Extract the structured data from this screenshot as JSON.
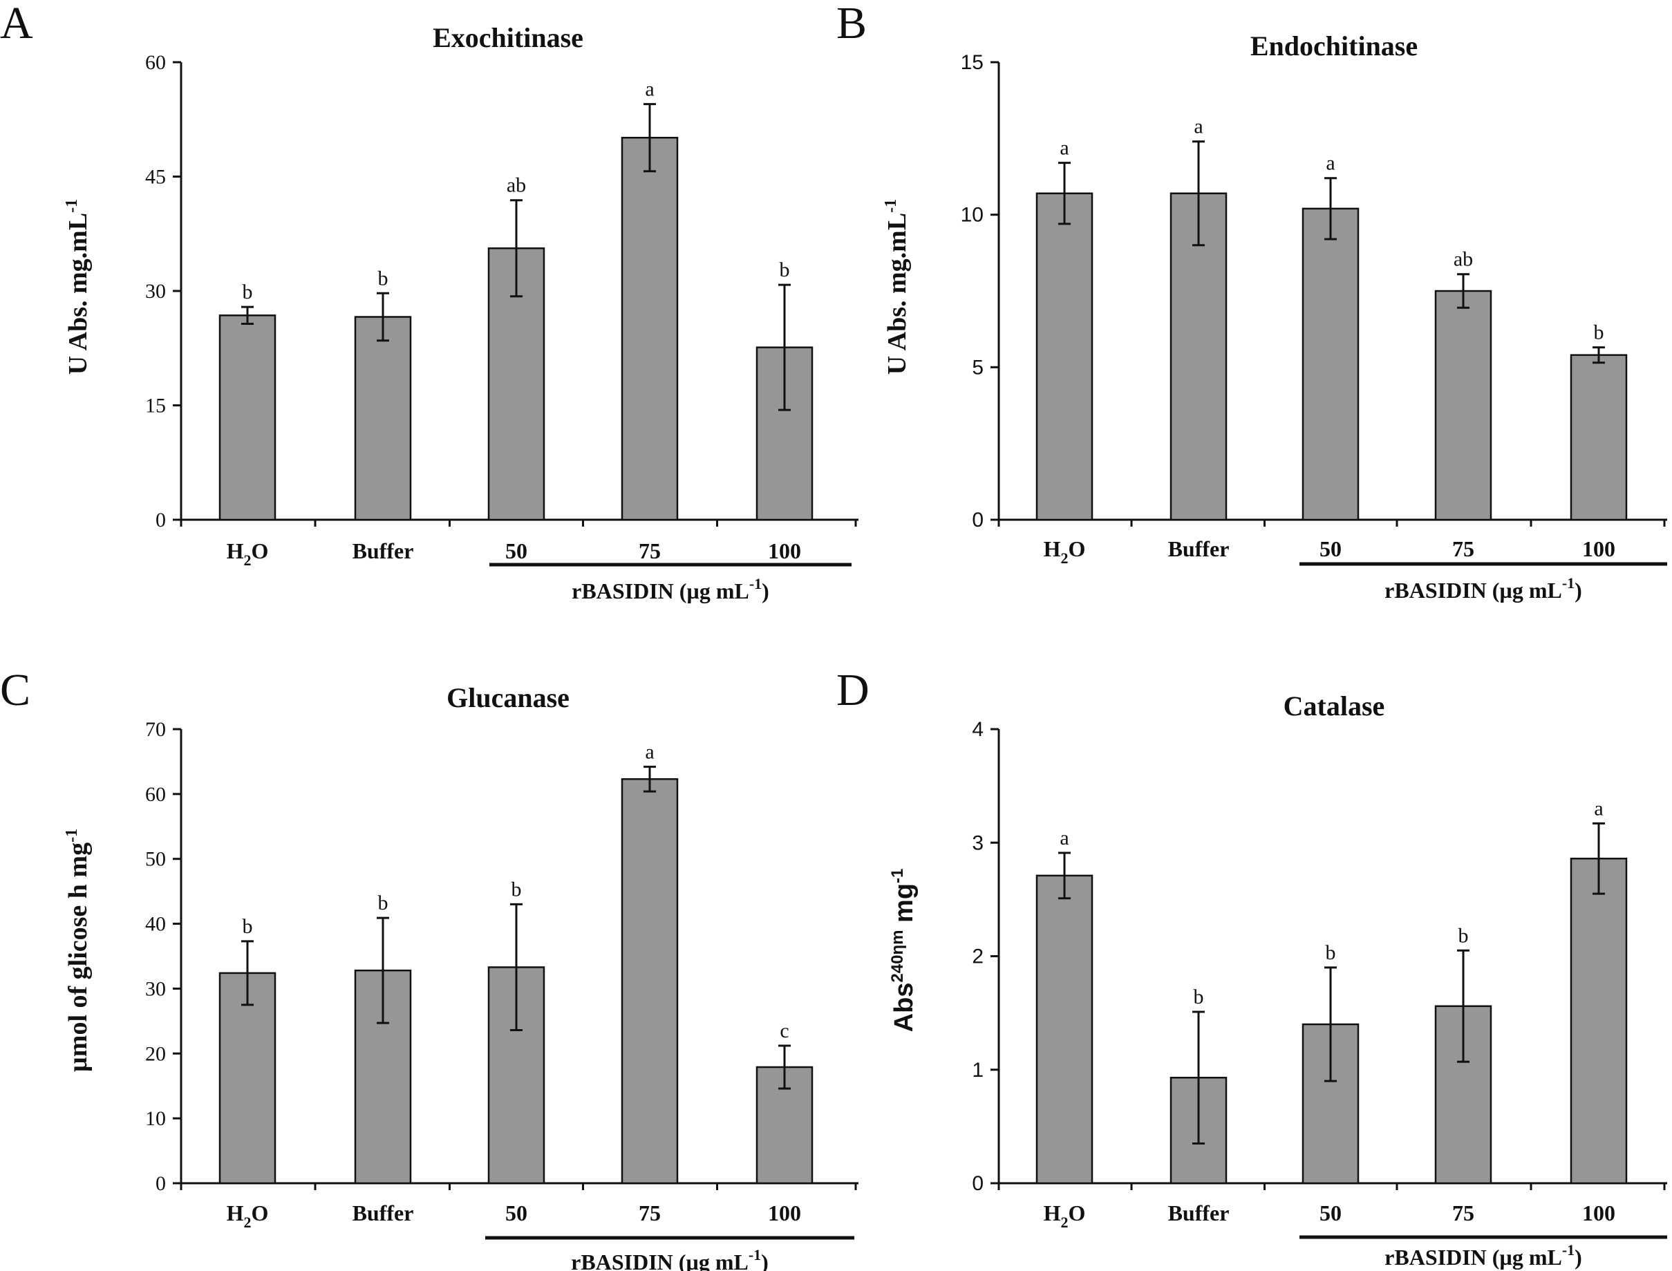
{
  "figure": {
    "panels": [
      "A",
      "B",
      "C",
      "D"
    ]
  },
  "chart_data": [
    {
      "type": "bar",
      "panel": "A",
      "title": "Exochitinase",
      "ylabel": "U Abs. mg.mL",
      "ylabel_sup": "-1",
      "xlabel": "",
      "categories": [
        "H2O",
        "Buffer",
        "50",
        "75",
        "100"
      ],
      "category_labels": [
        {
          "main": "H",
          "sub": "2",
          "tail": "O"
        },
        {
          "main": "Buffer"
        },
        {
          "main": "50"
        },
        {
          "main": "75"
        },
        {
          "main": "100"
        }
      ],
      "values": [
        26.8,
        26.6,
        35.6,
        50.1,
        22.6
      ],
      "errors": [
        1.1,
        3.1,
        6.3,
        4.4,
        8.2
      ],
      "significance": [
        "b",
        "b",
        "ab",
        "a",
        "b"
      ],
      "ylim": [
        0,
        60
      ],
      "yticks": [
        0,
        15,
        30,
        45,
        60
      ],
      "group_label": {
        "main": "rBASIDIN (µg mL",
        "sup": "-1",
        "tail": ")"
      }
    },
    {
      "type": "bar",
      "panel": "B",
      "title": "Endochitinase",
      "ylabel": "U Abs. mg.mL",
      "ylabel_sup": "-1",
      "xlabel": "",
      "categories": [
        "H2O",
        "Buffer",
        "50",
        "75",
        "100"
      ],
      "category_labels": [
        {
          "main": "H",
          "sub": "2",
          "tail": "O"
        },
        {
          "main": "Buffer"
        },
        {
          "main": "50"
        },
        {
          "main": "75"
        },
        {
          "main": "100"
        }
      ],
      "values": [
        10.7,
        10.7,
        10.2,
        7.5,
        5.4
      ],
      "errors": [
        1.0,
        1.7,
        1.0,
        0.55,
        0.25
      ],
      "significance": [
        "a",
        "a",
        "a",
        "ab",
        "b"
      ],
      "ylim": [
        0,
        15
      ],
      "yticks": [
        0,
        5,
        10,
        15
      ],
      "group_label": {
        "main": "rBASIDIN (µg mL",
        "sup": "-1",
        "tail": ")"
      }
    },
    {
      "type": "bar",
      "panel": "C",
      "title": "Glucanase",
      "ylabel": "µmol of glicose h mg",
      "ylabel_sup": "-1",
      "xlabel": "",
      "categories": [
        "H2O",
        "Buffer",
        "50",
        "75",
        "100"
      ],
      "category_labels": [
        {
          "main": "H",
          "sub": "2",
          "tail": "O"
        },
        {
          "main": "Buffer"
        },
        {
          "main": "50"
        },
        {
          "main": "75"
        },
        {
          "main": "100"
        }
      ],
      "values": [
        32.4,
        32.8,
        33.3,
        62.3,
        17.9
      ],
      "errors": [
        4.9,
        8.1,
        9.7,
        1.9,
        3.3
      ],
      "significance": [
        "b",
        "b",
        "b",
        "a",
        "c"
      ],
      "ylim": [
        0,
        70
      ],
      "yticks": [
        0,
        10,
        20,
        30,
        40,
        50,
        60,
        70
      ],
      "group_label": {
        "main": "rBASIDIN (µg mL",
        "sup": "-1",
        "tail": ")"
      }
    },
    {
      "type": "bar",
      "panel": "D",
      "title": "Catalase",
      "ylabel": "Abs",
      "ylabel_sup": "240ηm",
      "ylabel_tail": " mg",
      "ylabel_tail_sup": "-1",
      "xlabel": "",
      "categories": [
        "H2O",
        "Buffer",
        "50",
        "75",
        "100"
      ],
      "category_labels": [
        {
          "main": "H",
          "sub": "2",
          "tail": "O"
        },
        {
          "main": "Buffer"
        },
        {
          "main": "50"
        },
        {
          "main": "75"
        },
        {
          "main": "100"
        }
      ],
      "values": [
        2.71,
        0.93,
        1.4,
        1.56,
        2.86
      ],
      "errors": [
        0.2,
        0.58,
        0.5,
        0.49,
        0.31
      ],
      "significance": [
        "a",
        "b",
        "b",
        "b",
        "a"
      ],
      "ylim": [
        0,
        4
      ],
      "yticks": [
        0,
        1,
        2,
        3,
        4
      ],
      "group_label": {
        "main": "rBASIDIN (µg mL",
        "sup": "-1",
        "tail": ")"
      }
    }
  ]
}
